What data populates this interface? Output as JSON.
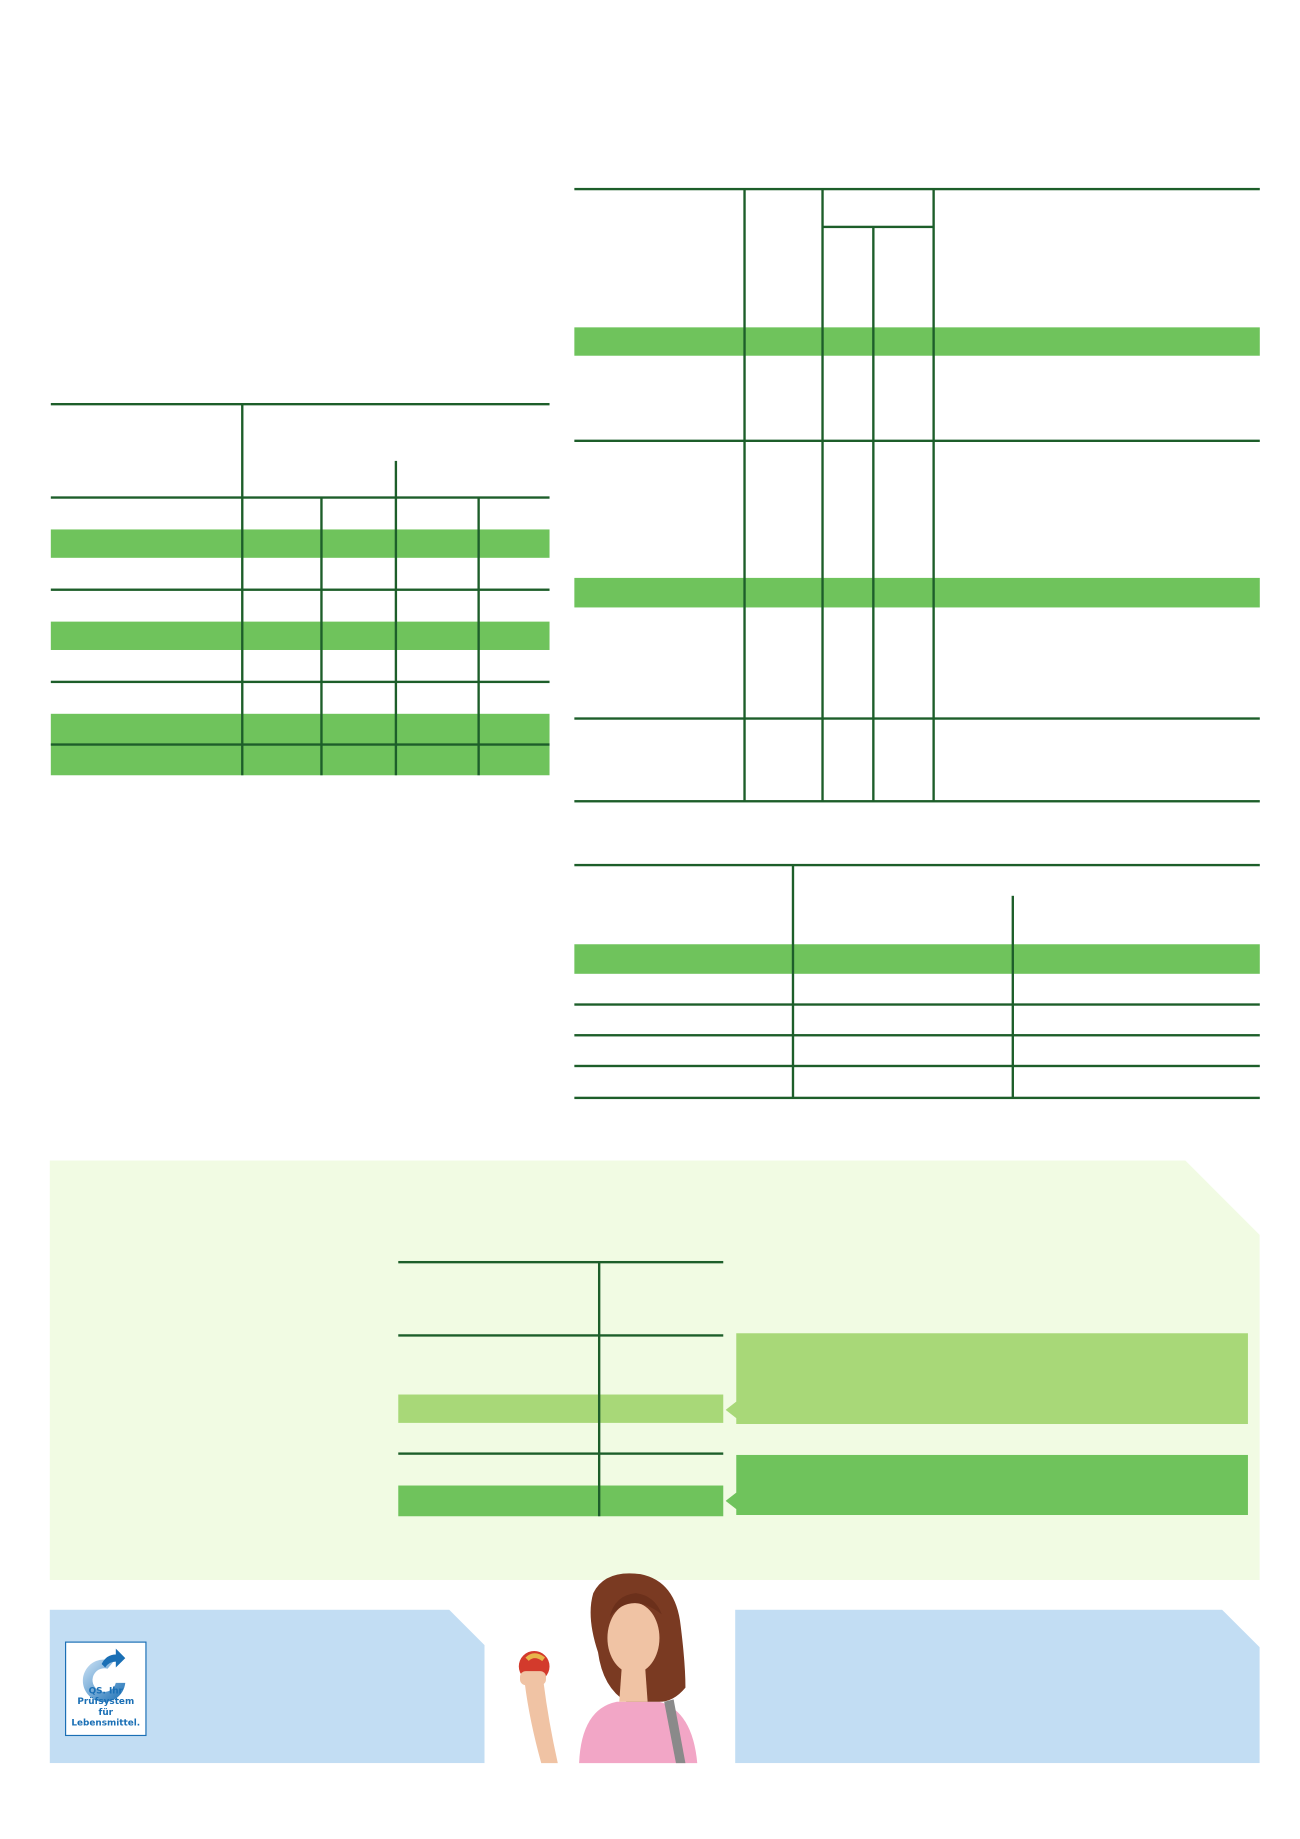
{
  "colors": {
    "line": "#1d5e2a",
    "green": "#6fc35c",
    "light_green": "#a8d878",
    "panel_green": "#f1fbe3",
    "panel_blue": "#c2ddf3",
    "logo_blue": "#1a6fb5"
  },
  "logo": {
    "icon": "qs-circular-arrow-icon",
    "line1": "QS. Ihr Prüfsystem",
    "line2": "für Lebensmittel."
  },
  "photo": {
    "subject": "woman-holding-apple"
  }
}
